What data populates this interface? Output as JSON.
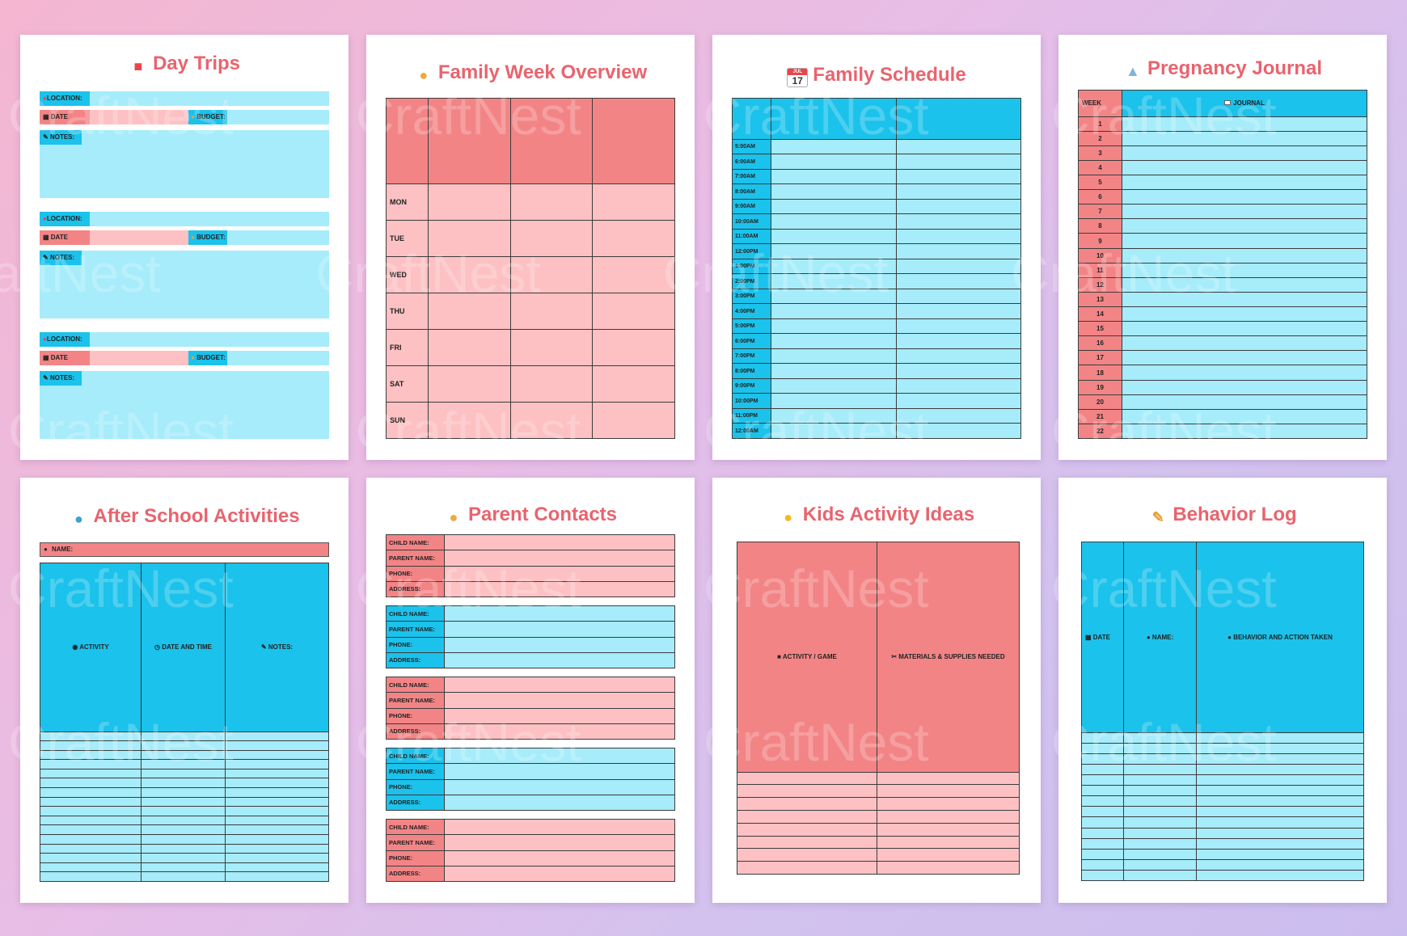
{
  "watermark": "CraftNest",
  "colors": {
    "cyan": "#a6ecfb",
    "cyan_dark": "#1bc2eb",
    "pink": "#fdc1c3",
    "pink_dark": "#f38486",
    "title": "#e8646e"
  },
  "day_trips": {
    "title": "Day Trips",
    "icon": "car-icon",
    "location": "LOCATION:",
    "date": "DATE",
    "budget": "BUDGET:",
    "notes": "NOTES:"
  },
  "week_overview": {
    "title": "Family Week Overview",
    "icon": "family-icon",
    "days": [
      "MON",
      "TUE",
      "WED",
      "THU",
      "FRI",
      "SAT",
      "SUN"
    ]
  },
  "schedule": {
    "title": "Family Schedule",
    "icon": "calendar-icon",
    "calendar_month": "JUL",
    "calendar_day": "17",
    "times": [
      "5:00AM",
      "6:00AM",
      "7:00AM",
      "8:00AM",
      "9:00AM",
      "10:00AM",
      "11:00AM",
      "12:00PM",
      "1:00PM",
      "2:00PM",
      "3:00PM",
      "4:00PM",
      "5:00PM",
      "6:00PM",
      "7:00PM",
      "8:00PM",
      "9:00PM",
      "10:00PM",
      "11:00PM",
      "12:00AM"
    ]
  },
  "pregnancy": {
    "title": "Pregnancy Journal",
    "icon": "baby-bottle-icon",
    "week": "WEEK",
    "journal": "JOURNAL",
    "weeks": [
      "1",
      "2",
      "3",
      "4",
      "5",
      "6",
      "7",
      "8",
      "9",
      "10",
      "11",
      "12",
      "13",
      "14",
      "15",
      "16",
      "17",
      "18",
      "19",
      "20",
      "21",
      "22"
    ]
  },
  "after_school": {
    "title": "After School Activities",
    "icon": "running-child-icon",
    "name": "NAME:",
    "activity": "ACTIVITY",
    "date_time": "DATE AND TIME",
    "notes": "NOTES:"
  },
  "parent_contacts": {
    "title": "Parent Contacts",
    "icon": "parents-icon",
    "fields": [
      "CHILD NAME:",
      "PARENT NAME:",
      "PHONE:",
      "ADDRESS:"
    ]
  },
  "kids_ideas": {
    "title": "Kids Activity Ideas",
    "icon": "child-face-icon",
    "col1": "ACTIVITY / GAME",
    "col2": "MATERIALS & SUPPLIES NEEDED"
  },
  "behavior": {
    "title": "Behavior Log",
    "icon": "memo-icon",
    "date": "DATE",
    "name": "NAME:",
    "action": "BEHAVIOR AND ACTION TAKEN"
  }
}
